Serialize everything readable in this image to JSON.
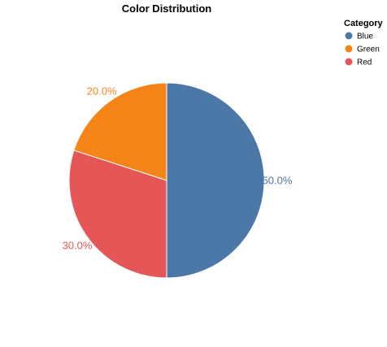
{
  "chart_data": {
    "type": "pie",
    "title": "Color Distribution",
    "legend": {
      "title": "Category",
      "placement": "top-right"
    },
    "slices": [
      {
        "label": "Blue",
        "value": 50,
        "value_label": "50.0%",
        "color": "#4c78a8"
      },
      {
        "label": "Red",
        "value": 30,
        "value_label": "30.0%",
        "color": "#e45756"
      },
      {
        "label": "Green",
        "value": 20,
        "value_label": "20.0%",
        "color": "#f58518"
      }
    ],
    "legend_order": [
      "Blue",
      "Green",
      "Red"
    ]
  }
}
